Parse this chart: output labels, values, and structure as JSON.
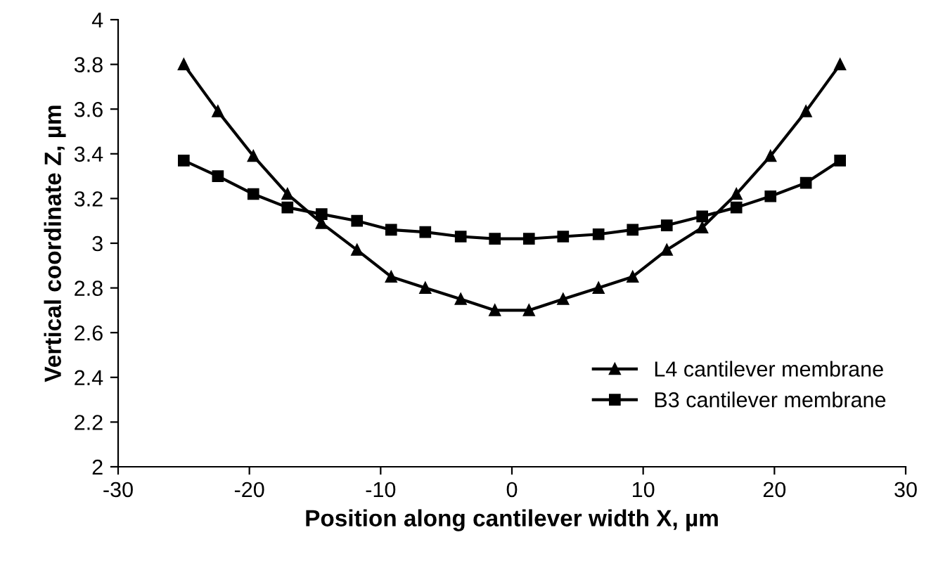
{
  "chart_data": {
    "type": "line",
    "xlabel": "Position along cantilever width X, µm",
    "ylabel": "Vertical coordinate Z, µm",
    "x": [
      -25,
      -22.4,
      -19.7,
      -17.1,
      -14.5,
      -11.8,
      -9.2,
      -6.6,
      -3.9,
      -1.3,
      1.3,
      3.9,
      6.6,
      9.2,
      11.8,
      14.5,
      17.1,
      19.7,
      22.4,
      25
    ],
    "series": [
      {
        "name": "L4 cantilever membrane",
        "color": "#000000",
        "marker": "triangle",
        "values": [
          3.8,
          3.59,
          3.39,
          3.22,
          3.09,
          2.97,
          2.85,
          2.8,
          2.75,
          2.7,
          2.7,
          2.75,
          2.8,
          2.85,
          2.97,
          3.07,
          3.22,
          3.39,
          3.59,
          3.8
        ]
      },
      {
        "name": "B3 cantilever membrane",
        "color": "#000000",
        "marker": "square",
        "values": [
          3.37,
          3.3,
          3.22,
          3.16,
          3.13,
          3.1,
          3.06,
          3.05,
          3.03,
          3.02,
          3.02,
          3.03,
          3.04,
          3.06,
          3.08,
          3.12,
          3.16,
          3.21,
          3.27,
          3.37
        ]
      }
    ],
    "xlim": [
      -30,
      30
    ],
    "xticks": [
      -30,
      -20,
      -10,
      0,
      10,
      20,
      30
    ],
    "ylim": [
      2,
      4
    ],
    "yticks": [
      2,
      2.2,
      2.4,
      2.6,
      2.8,
      3,
      3.2,
      3.4,
      3.6,
      3.8,
      4
    ],
    "grid": false,
    "legend": "bottom right",
    "line_style": "solid"
  }
}
